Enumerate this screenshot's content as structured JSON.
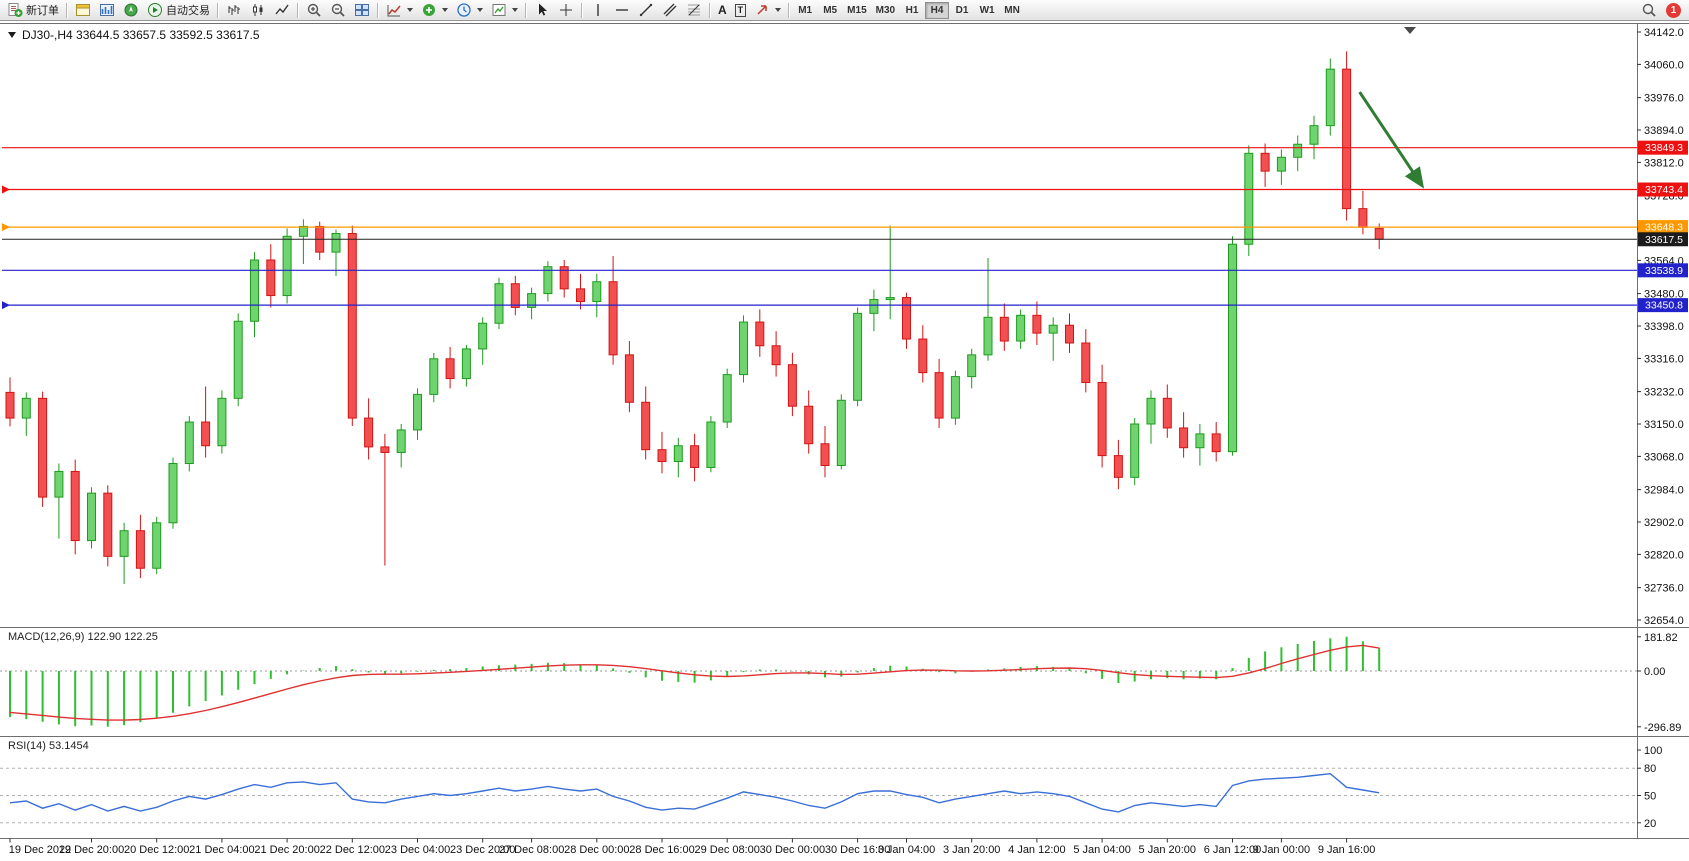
{
  "toolbar": {
    "new_order_label": "新订单",
    "autotrading_label": "自动交易",
    "text_tool_label": "A",
    "label_tool_label": "T",
    "timeframes": [
      "M1",
      "M5",
      "M15",
      "M30",
      "H1",
      "H4",
      "D1",
      "W1",
      "MN"
    ],
    "active_timeframe": "H4",
    "notification_count": "1"
  },
  "chart_data": {
    "type": "candlestick",
    "symbol": "DJ30-",
    "timeframe": "H4",
    "symbol_header": "DJ30-,H4 33644.5 33657.5 33592.5 33617.5",
    "ohlc_current": {
      "open": 33644.5,
      "high": 33657.5,
      "low": 33592.5,
      "close": 33617.5
    },
    "axis_top_price": 34142.0,
    "axis_bottom_price": 32654.0,
    "price_axis_labels": [
      "34142.0",
      "34060.0",
      "33976.0",
      "33894.0",
      "33812.0",
      "33728.0",
      "33644.0",
      "33564.0",
      "33480.0",
      "33398.0",
      "33316.0",
      "33232.0",
      "33150.0",
      "33068.0",
      "32984.0",
      "32902.0",
      "32820.0",
      "32736.0",
      "32654.0"
    ],
    "candles": [
      [
        33230,
        33268,
        33144,
        33165
      ],
      [
        33165,
        33230,
        33120,
        33215
      ],
      [
        33215,
        33232,
        32940,
        32965
      ],
      [
        32965,
        33050,
        32860,
        33030
      ],
      [
        33030,
        33060,
        32820,
        32855
      ],
      [
        32855,
        32990,
        32835,
        32975
      ],
      [
        32975,
        32995,
        32790,
        32815
      ],
      [
        32815,
        32900,
        32745,
        32880
      ],
      [
        32880,
        32920,
        32760,
        32785
      ],
      [
        32785,
        32915,
        32770,
        32900
      ],
      [
        32900,
        33065,
        32885,
        33050
      ],
      [
        33050,
        33170,
        33030,
        33155
      ],
      [
        33155,
        33245,
        33065,
        33095
      ],
      [
        33095,
        33235,
        33075,
        33215
      ],
      [
        33215,
        33430,
        33195,
        33410
      ],
      [
        33410,
        33585,
        33370,
        33565
      ],
      [
        33565,
        33605,
        33445,
        33475
      ],
      [
        33475,
        33645,
        33455,
        33625
      ],
      [
        33625,
        33668,
        33555,
        33650
      ],
      [
        33650,
        33662,
        33565,
        33585
      ],
      [
        33585,
        33642,
        33525,
        33632
      ],
      [
        33632,
        33652,
        33145,
        33165
      ],
      [
        33165,
        33215,
        33060,
        33092
      ],
      [
        33092,
        33125,
        32792,
        33078
      ],
      [
        33078,
        33150,
        33040,
        33135
      ],
      [
        33135,
        33240,
        33110,
        33225
      ],
      [
        33225,
        33330,
        33205,
        33315
      ],
      [
        33315,
        33345,
        33240,
        33265
      ],
      [
        33265,
        33350,
        33245,
        33340
      ],
      [
        33340,
        33420,
        33300,
        33405
      ],
      [
        33405,
        33520,
        33390,
        33505
      ],
      [
        33505,
        33525,
        33425,
        33445
      ],
      [
        33445,
        33495,
        33415,
        33480
      ],
      [
        33480,
        33562,
        33460,
        33548
      ],
      [
        33548,
        33565,
        33470,
        33492
      ],
      [
        33492,
        33530,
        33440,
        33460
      ],
      [
        33460,
        33530,
        33420,
        33510
      ],
      [
        33510,
        33575,
        33300,
        33325
      ],
      [
        33325,
        33360,
        33180,
        33205
      ],
      [
        33205,
        33245,
        33060,
        33085
      ],
      [
        33085,
        33130,
        33025,
        33055
      ],
      [
        33055,
        33115,
        33015,
        33095
      ],
      [
        33095,
        33125,
        33005,
        33040
      ],
      [
        33040,
        33170,
        33028,
        33155
      ],
      [
        33155,
        33290,
        33140,
        33275
      ],
      [
        33275,
        33425,
        33255,
        33408
      ],
      [
        33408,
        33440,
        33320,
        33348
      ],
      [
        33348,
        33385,
        33270,
        33300
      ],
      [
        33300,
        33330,
        33170,
        33195
      ],
      [
        33195,
        33235,
        33075,
        33100
      ],
      [
        33100,
        33145,
        33015,
        33045
      ],
      [
        33045,
        33225,
        33035,
        33210
      ],
      [
        33210,
        33445,
        33195,
        33430
      ],
      [
        33430,
        33490,
        33385,
        33465
      ],
      [
        33465,
        33652,
        33415,
        33470
      ],
      [
        33470,
        33482,
        33340,
        33365
      ],
      [
        33365,
        33400,
        33255,
        33280
      ],
      [
        33280,
        33315,
        33140,
        33165
      ],
      [
        33165,
        33285,
        33148,
        33270
      ],
      [
        33270,
        33340,
        33240,
        33325
      ],
      [
        33325,
        33570,
        33310,
        33420
      ],
      [
        33420,
        33455,
        33335,
        33360
      ],
      [
        33360,
        33440,
        33340,
        33425
      ],
      [
        33425,
        33460,
        33350,
        33380
      ],
      [
        33380,
        33420,
        33310,
        33400
      ],
      [
        33400,
        33430,
        33330,
        33355
      ],
      [
        33355,
        33390,
        33230,
        33255
      ],
      [
        33255,
        33300,
        33040,
        33070
      ],
      [
        33070,
        33110,
        32985,
        33015
      ],
      [
        33015,
        33165,
        32995,
        33150
      ],
      [
        33150,
        33235,
        33100,
        33215
      ],
      [
        33215,
        33250,
        33115,
        33140
      ],
      [
        33140,
        33180,
        33065,
        33090
      ],
      [
        33090,
        33150,
        33045,
        33125
      ],
      [
        33125,
        33155,
        33055,
        33080
      ],
      [
        33080,
        33625,
        33070,
        33605
      ],
      [
        33605,
        33855,
        33575,
        33835
      ],
      [
        33835,
        33860,
        33750,
        33790
      ],
      [
        33790,
        33845,
        33755,
        33825
      ],
      [
        33825,
        33880,
        33790,
        33858
      ],
      [
        33858,
        33930,
        33820,
        33905
      ],
      [
        33905,
        34075,
        33880,
        34048
      ],
      [
        34048,
        34093,
        33665,
        33695
      ],
      [
        33695,
        33740,
        33630,
        33648
      ],
      [
        33644.5,
        33657.5,
        33592.5,
        33617.5
      ]
    ],
    "time_labels": [
      [
        0,
        "19 Dec 2022"
      ],
      [
        5,
        "19 Dec 20:00"
      ],
      [
        9,
        "20 Dec 12:00"
      ],
      [
        13,
        "21 Dec 04:00"
      ],
      [
        17,
        "21 Dec 20:00"
      ],
      [
        21,
        "22 Dec 12:00"
      ],
      [
        25,
        "23 Dec 04:00"
      ],
      [
        29,
        "23 Dec 20:00"
      ],
      [
        32,
        "27 Dec 08:00"
      ],
      [
        36,
        "28 Dec 00:00"
      ],
      [
        40,
        "28 Dec 16:00"
      ],
      [
        44,
        "29 Dec 08:00"
      ],
      [
        48,
        "30 Dec 00:00"
      ],
      [
        52,
        "30 Dec 16:00"
      ],
      [
        55,
        "3 Jan 04:00"
      ],
      [
        59,
        "3 Jan 20:00"
      ],
      [
        63,
        "4 Jan 12:00"
      ],
      [
        67,
        "5 Jan 04:00"
      ],
      [
        71,
        "5 Jan 20:00"
      ],
      [
        75,
        "6 Jan 12:00"
      ],
      [
        78,
        "9 Jan 00:00"
      ],
      [
        82,
        "9 Jan 16:00"
      ]
    ],
    "hlines": [
      {
        "price": 33849.3,
        "label": "33849.3",
        "color": "#ee1111",
        "marker": false
      },
      {
        "price": 33743.4,
        "label": "33743.4",
        "color": "#ee1111",
        "marker": true
      },
      {
        "price": 33648.3,
        "label": "33648.3",
        "color": "#ff9800",
        "marker": true
      },
      {
        "price": 33538.9,
        "label": "33538.9",
        "color": "#2222cc",
        "marker": false
      },
      {
        "price": 33450.8,
        "label": "33450.8",
        "color": "#2222cc",
        "marker": true
      }
    ],
    "current_price": {
      "price": 33617.5,
      "label": "33617.5",
      "color": "#222222"
    },
    "arrow": {
      "from_index": 82.8,
      "from_price": 33990,
      "to_index": 86.6,
      "to_price": 33755,
      "color": "#2e7d32"
    },
    "macd": {
      "label": "MACD(12,26,9) 122.90 122.25",
      "scale_labels": [
        "181.82",
        "0.00",
        "-296.89"
      ],
      "scale_values": [
        181.82,
        0,
        -296.89
      ],
      "histogram_color": "#2fbf2f",
      "signal_color": "#e03030",
      "histogram": [
        -245,
        -256,
        -270,
        -284,
        -294,
        -290,
        -296,
        -288,
        -272,
        -252,
        -222,
        -188,
        -160,
        -130,
        -100,
        -70,
        -42,
        -18,
        2,
        16,
        26,
        10,
        -8,
        -16,
        -12,
        -4,
        6,
        10,
        16,
        24,
        30,
        34,
        38,
        44,
        42,
        34,
        30,
        14,
        -10,
        -34,
        -52,
        -58,
        -62,
        -50,
        -30,
        -6,
        8,
        8,
        -2,
        -18,
        -34,
        -30,
        -8,
        16,
        28,
        24,
        12,
        -6,
        -12,
        -4,
        8,
        14,
        22,
        26,
        22,
        14,
        -12,
        -42,
        -64,
        -56,
        -44,
        -38,
        -44,
        -40,
        -44,
        16,
        70,
        104,
        126,
        144,
        160,
        174,
        182,
        158,
        123
      ],
      "signal": [
        -220,
        -228,
        -236,
        -245,
        -252,
        -257,
        -261,
        -261,
        -258,
        -251,
        -241,
        -227,
        -210,
        -190,
        -168,
        -144,
        -120,
        -96,
        -73,
        -53,
        -36,
        -24,
        -18,
        -17,
        -17,
        -15,
        -11,
        -7,
        -2,
        3,
        9,
        15,
        21,
        27,
        31,
        33,
        33,
        30,
        23,
        13,
        1,
        -10,
        -20,
        -27,
        -29,
        -26,
        -20,
        -14,
        -10,
        -10,
        -14,
        -18,
        -17,
        -11,
        -4,
        2,
        5,
        4,
        1,
        0,
        1,
        4,
        8,
        12,
        15,
        16,
        12,
        3,
        -9,
        -19,
        -25,
        -28,
        -31,
        -33,
        -35,
        -28,
        -10,
        13,
        40,
        65,
        88,
        110,
        128,
        136,
        122
      ]
    },
    "rsi": {
      "label": "RSI(14) 53.1454",
      "scale_labels": [
        "100",
        "80",
        "50",
        "20"
      ],
      "levels": [
        80,
        50,
        20
      ],
      "line_color": "#3a6fd8",
      "values": [
        42,
        44,
        36,
        41,
        34,
        40,
        33,
        38,
        33,
        37,
        44,
        49,
        46,
        51,
        57,
        62,
        59,
        64,
        65,
        62,
        64,
        46,
        43,
        42,
        46,
        49,
        52,
        50,
        52,
        55,
        58,
        55,
        57,
        60,
        57,
        55,
        57,
        49,
        44,
        37,
        34,
        36,
        35,
        41,
        47,
        54,
        51,
        48,
        44,
        39,
        36,
        43,
        52,
        55,
        55,
        51,
        48,
        42,
        46,
        49,
        52,
        55,
        52,
        54,
        52,
        49,
        42,
        35,
        32,
        39,
        42,
        40,
        38,
        40,
        38,
        61,
        66,
        68,
        69,
        70,
        72,
        74,
        59,
        56,
        53
      ]
    }
  }
}
